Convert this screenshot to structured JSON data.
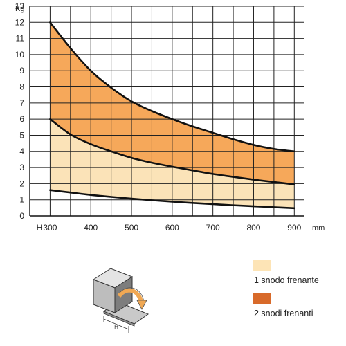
{
  "chart_data": {
    "type": "area",
    "x_unit": "mm",
    "y_unit": "Kg",
    "x_start_label": "H",
    "xlim": [
      250,
      925
    ],
    "ylim": [
      0,
      13
    ],
    "x_ticks": [
      300,
      400,
      500,
      600,
      700,
      800,
      900
    ],
    "y_ticks": [
      0,
      1,
      2,
      3,
      4,
      5,
      6,
      7,
      8,
      9,
      10,
      11,
      12,
      13
    ],
    "grid": true,
    "curves": {
      "x": [
        300,
        350,
        400,
        450,
        500,
        550,
        600,
        650,
        700,
        750,
        800,
        850,
        900
      ],
      "lower": [
        1.6,
        1.45,
        1.3,
        1.18,
        1.07,
        0.97,
        0.88,
        0.8,
        0.73,
        0.66,
        0.6,
        0.54,
        0.48
      ],
      "middle": [
        6.0,
        5.05,
        4.45,
        4.0,
        3.6,
        3.3,
        3.05,
        2.82,
        2.6,
        2.42,
        2.25,
        2.1,
        1.95
      ],
      "upper": [
        12.0,
        10.4,
        9.0,
        7.95,
        7.1,
        6.5,
        6.0,
        5.55,
        5.15,
        4.75,
        4.4,
        4.15,
        4.0
      ]
    },
    "series": [
      {
        "name": "1 snodo frenante",
        "color": "#fbe3b8",
        "band": [
          "lower",
          "middle"
        ]
      },
      {
        "name": "2 snodi frenanti",
        "color": "#f6a85a",
        "band": [
          "middle",
          "upper"
        ]
      }
    ],
    "legend_swatch_colors": [
      "#fde4b6",
      "#d86a2a"
    ],
    "legend_position": "bottom-right"
  }
}
